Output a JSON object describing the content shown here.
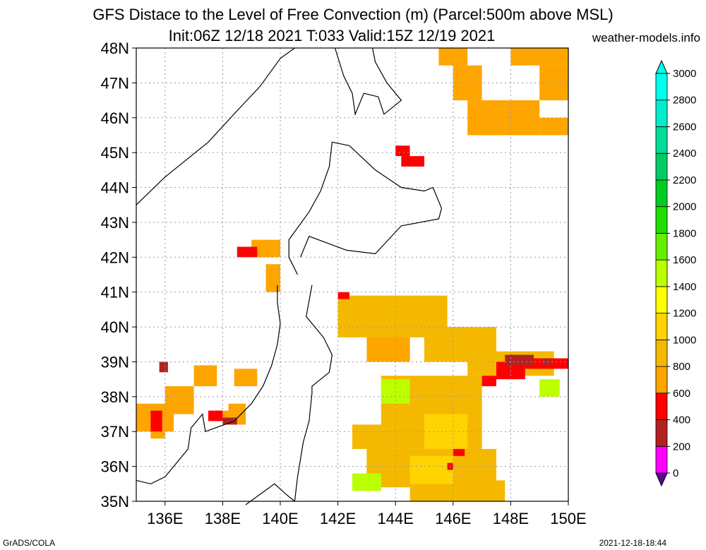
{
  "title_line1": "GFS Distace to the Level of Free Convection (m) (Parcel:500m above MSL)",
  "title_line2": "Init:06Z 12/18 2021 T:033 Valid:15Z 12/19 2021",
  "site": "weather-models.info",
  "credit": "GrADS/COLA",
  "timestamp": "2021-12-18-18:44",
  "map": {
    "lon_range": [
      135,
      150
    ],
    "lat_range": [
      35,
      48
    ],
    "lon_ticks": [
      136,
      138,
      140,
      142,
      144,
      146,
      148,
      150
    ],
    "lat_ticks": [
      35,
      36,
      37,
      38,
      39,
      40,
      41,
      42,
      43,
      44,
      45,
      46,
      47,
      48
    ],
    "lon_labels": [
      "136E",
      "138E",
      "140E",
      "142E",
      "144E",
      "146E",
      "148E",
      "150E"
    ],
    "lat_labels": [
      "35N",
      "36N",
      "37N",
      "38N",
      "39N",
      "40N",
      "41N",
      "42N",
      "43N",
      "44N",
      "45N",
      "46N",
      "47N",
      "48N"
    ],
    "grid": "dotted"
  },
  "colorbar": {
    "levels": [
      0,
      200,
      400,
      600,
      800,
      1000,
      1200,
      1400,
      1600,
      1800,
      2000,
      2200,
      2400,
      2600,
      2800,
      3000
    ],
    "labels": [
      "0",
      "200",
      "400",
      "600",
      "800",
      "1000",
      "1200",
      "1400",
      "1600",
      "1800",
      "2000",
      "2200",
      "2400",
      "2600",
      "2800",
      "3000"
    ],
    "colors": [
      "#5a0a8c",
      "#ff00ff",
      "#b22222",
      "#ff0000",
      "#ffa500",
      "#f5b800",
      "#ffd400",
      "#ffff00",
      "#bbff00",
      "#66ee00",
      "#22dd00",
      "#00cc22",
      "#00cc66",
      "#00dd99",
      "#00eecc",
      "#00ffee"
    ]
  },
  "shading": [
    {
      "c": "#ffa500",
      "r": [
        [
          145.5,
          47.5,
          146.5,
          48
        ],
        [
          146,
          46.5,
          147,
          47.5
        ],
        [
          147,
          45.5,
          149,
          46.5
        ],
        [
          148,
          47.5,
          150,
          48
        ],
        [
          149,
          46.5,
          150,
          47.5
        ],
        [
          146.5,
          45.5,
          147.5,
          46.5
        ],
        [
          149,
          45.5,
          150,
          46
        ]
      ]
    },
    {
      "c": "#ffa500",
      "r": [
        [
          139,
          42,
          140,
          42.5
        ],
        [
          139.5,
          41,
          140,
          41.8
        ],
        [
          143,
          39,
          144.5,
          40.2
        ]
      ]
    },
    {
      "c": "#f5b800",
      "r": [
        [
          142,
          39.7,
          145.8,
          40.9
        ],
        [
          145,
          39,
          147.5,
          40
        ],
        [
          146.5,
          38.6,
          149.5,
          39.3
        ],
        [
          143.5,
          37,
          147,
          38.6
        ],
        [
          142.5,
          36.5,
          147,
          37.2
        ],
        [
          143,
          35.4,
          147.5,
          36.5
        ],
        [
          144.5,
          35,
          147.8,
          35.6
        ]
      ]
    },
    {
      "c": "#ffd400",
      "r": [
        [
          145,
          36.5,
          146.5,
          37.5
        ],
        [
          144.5,
          35.5,
          146,
          36.3
        ]
      ]
    },
    {
      "c": "#bbff00",
      "r": [
        [
          142.5,
          35.3,
          143.5,
          35.8
        ],
        [
          143.5,
          37.8,
          144.5,
          38.5
        ],
        [
          149,
          38,
          149.7,
          38.5
        ]
      ]
    },
    {
      "c": "#ffa500",
      "r": [
        [
          135,
          37,
          136.3,
          37.8
        ],
        [
          135.5,
          36.8,
          136,
          37.1
        ],
        [
          136,
          37.5,
          137,
          38.3
        ],
        [
          137,
          38.3,
          137.8,
          38.9
        ],
        [
          138.4,
          38.3,
          139.2,
          38.8
        ],
        [
          138.2,
          37.2,
          138.8,
          37.8
        ],
        [
          137.8,
          37.3,
          138.4,
          37.6
        ]
      ]
    },
    {
      "c": "#ff0000",
      "r": [
        [
          144,
          44.9,
          144.5,
          45.2
        ],
        [
          144.2,
          44.6,
          145,
          44.9
        ],
        [
          138.5,
          42,
          139.2,
          42.3
        ],
        [
          142,
          40.8,
          142.4,
          41
        ],
        [
          147.5,
          38.5,
          148.5,
          39
        ],
        [
          137.5,
          37.3,
          138,
          37.6
        ],
        [
          135.5,
          37,
          135.9,
          37.6
        ],
        [
          148.5,
          38.8,
          150,
          39.1
        ],
        [
          147,
          38.3,
          147.5,
          38.6
        ],
        [
          146,
          36.3,
          146.4,
          36.5
        ],
        [
          145.8,
          35.9,
          146,
          36.1
        ]
      ]
    },
    {
      "c": "#b22222",
      "r": [
        [
          147.8,
          38.9,
          148.8,
          39.2
        ],
        [
          149.1,
          38.9,
          149.4,
          39.1
        ],
        [
          138,
          37.2,
          138.5,
          37.4
        ],
        [
          135.8,
          38.7,
          136.1,
          39
        ]
      ]
    }
  ],
  "coastline_paths": [
    "M135,43.5 L136,44.3 L137.5,45.3 L138.5,46.2 L139.3,46.9 L140,47.7 L140.5,48",
    "M141.9,48 L142.2,47.2 L142.5,46.7 L142.6,46.1 L142.9,46.7 L143.4,46.6 L143.6,46.1 L144.2,46.5 L143.7,47 L143.3,47.6 L143.2,48",
    "M140.6,41.5 L140.3,42 L140.3,42.5 L141,43.3 L141.4,43.9 L141.7,44.6 L141.8,45.3 L142.4,45.2 L143.3,44.5 L144.2,44 L145,43.9 L145.3,44 L145.6,43.4 L145.5,43.1 L144.2,42.9 L143.3,42.1 L142.3,42.2 L141,42.6 L140.7,42",
    "M141.1,41.2 L140.9,40.3 L141.5,39.7 L141.8,39.2 L141.7,38.7 L141.1,38.3 L141.1,38.1 L141,37.3 L140.8,36.7 L140.6,35.7 L140.5,35",
    "M140.5,35 L140.2,35.2 L139.8,35.5 L138.8,34.9",
    "M139.9,41.2 L139.9,40.7 L140,40.1 L139.9,39.5 L139.7,38.9 L139.4,38.3 L139,37.8 L138.4,37.3 L137.4,37 L137.3,37.5 L136.9,37.1 L136.8,36.5 L136,35.7 L135.5,35.5 L135,35.6"
  ]
}
